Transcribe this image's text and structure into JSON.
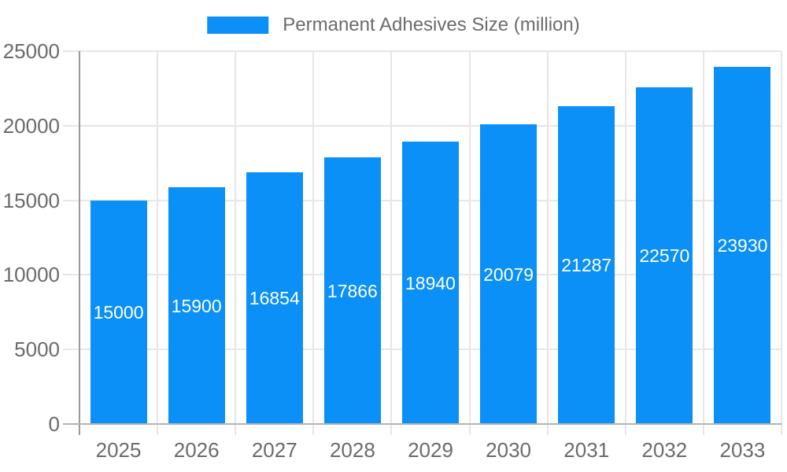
{
  "legend": {
    "label": "Permanent Adhesives Size (million)"
  },
  "chart_data": {
    "type": "bar",
    "title": "Permanent Adhesives Size (million)",
    "series_name": "Permanent Adhesives Size (million)",
    "categories": [
      "2025",
      "2026",
      "2027",
      "2028",
      "2029",
      "2030",
      "2031",
      "2032",
      "2033"
    ],
    "values": [
      15000,
      15900,
      16854,
      17866,
      18940,
      20079,
      21287,
      22570,
      23930
    ],
    "xlabel": "",
    "ylabel": "",
    "ylim": [
      0,
      25000
    ],
    "yticks": [
      0,
      5000,
      10000,
      15000,
      20000,
      25000
    ],
    "grid": true,
    "legend_position": "top-center",
    "bar_value_labels_inside": true,
    "colors": {
      "bar": "#0a90f6",
      "bar_label": "#ffffff",
      "axis_text": "#6b6b6b",
      "grid_line": "#e6e6e6",
      "axis_line": "#999999",
      "bottom_line": "#b3b3b3",
      "background": "#ffffff"
    }
  }
}
